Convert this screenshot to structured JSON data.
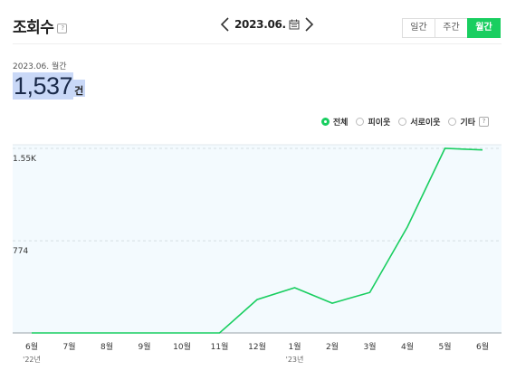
{
  "header": {
    "title": "조회수",
    "help": "?"
  },
  "date_nav": {
    "label": "2023.06."
  },
  "period_tabs": [
    {
      "label": "일간",
      "active": false
    },
    {
      "label": "주간",
      "active": false
    },
    {
      "label": "월간",
      "active": true
    }
  ],
  "summary": {
    "period": "2023.06. 월간",
    "value": "1,537",
    "unit": "건"
  },
  "legend": {
    "items": [
      {
        "label": "전체",
        "selected": true
      },
      {
        "label": "피이웃",
        "selected": false
      },
      {
        "label": "서로이웃",
        "selected": false
      },
      {
        "label": "기타",
        "selected": false
      }
    ],
    "help": "?"
  },
  "colors": {
    "accent": "#19ce60",
    "highlight": "#c9d8f7",
    "plot_bg": "#f3fafe"
  },
  "chart_data": {
    "type": "line",
    "categories": [
      "6월",
      "7월",
      "8월",
      "9월",
      "10월",
      "11월",
      "12월",
      "1월",
      "2월",
      "3월",
      "4월",
      "5월",
      "6월"
    ],
    "year_labels": [
      {
        "index": 0,
        "label": "'22년"
      },
      {
        "index": 7,
        "label": "'23년"
      }
    ],
    "series": [
      {
        "values": [
          0,
          0,
          0,
          0,
          0,
          0,
          280,
          380,
          250,
          340,
          890,
          1550,
          1537
        ]
      }
    ],
    "yticks": [
      {
        "value": 774,
        "label": "774"
      },
      {
        "value": 1550,
        "label": "1.55K"
      }
    ],
    "ylim": [
      0,
      1550
    ],
    "grid": true
  }
}
